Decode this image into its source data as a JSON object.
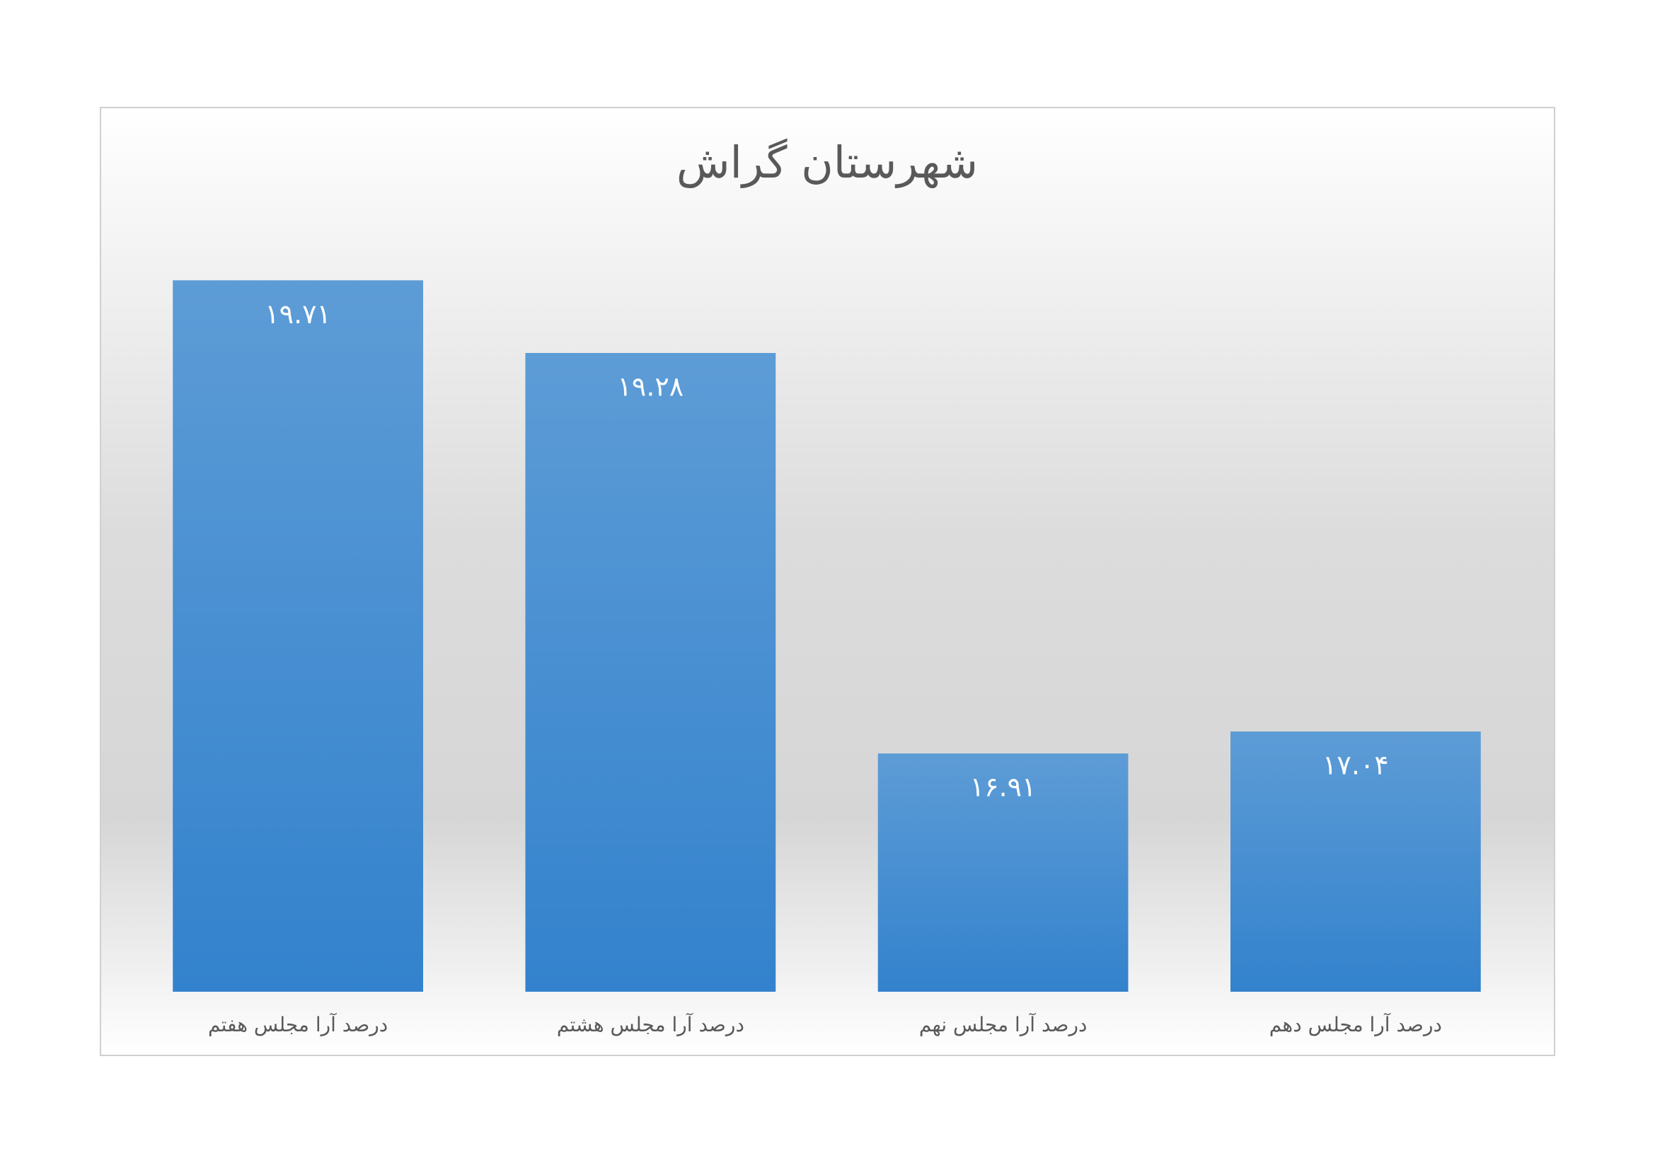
{
  "chart_data": {
    "type": "bar",
    "title": "شهرستان گراش",
    "categories": [
      "درصد آرا مجلس هفتم",
      "درصد آرا مجلس هشتم",
      "درصد آرا مجلس نهم",
      "درصد آرا مجلس دهم"
    ],
    "values": [
      19.71,
      19.28,
      16.91,
      17.04
    ],
    "value_labels": [
      "۱۹.۷۱",
      "۱۹.۲۸",
      "۱۶.۹۱",
      "۱۷.۰۴"
    ],
    "color": "#4a8fd4",
    "ylim": [
      15.5,
      20
    ]
  }
}
